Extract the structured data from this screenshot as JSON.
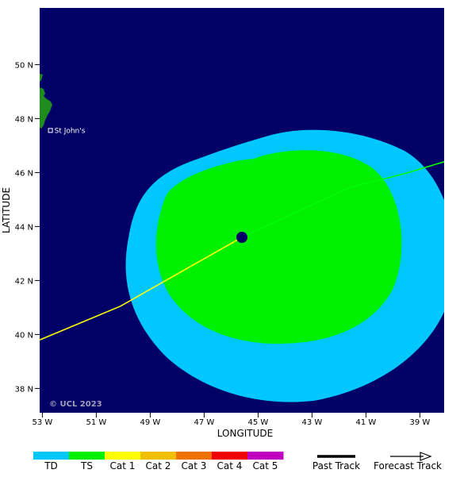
{
  "map": {
    "ocean_color": "#000066",
    "land_color": "#1e8c1e",
    "cone_colors": {
      "outer": "#00c8ff",
      "inner": "#00f000"
    },
    "center_marker_color": "#000066",
    "track_colors": {
      "past": "#ffff00",
      "forecast": "#00ff00"
    },
    "copyright": "© UCL 2023",
    "city": {
      "name": "St John's",
      "lon": -52.7,
      "lat": 47.56
    },
    "storm_center": {
      "lon": -45.6,
      "lat": 43.6
    },
    "bounds": {
      "lon_min": -53.1,
      "lon_max": -38.1,
      "lat_min": 37.1,
      "lat_max": 52.1
    }
  },
  "axes": {
    "xlabel": "LONGITUDE",
    "ylabel": "LATITUDE",
    "x_ticks": [
      {
        "lon": -53,
        "label": "53 W"
      },
      {
        "lon": -51,
        "label": "51 W"
      },
      {
        "lon": -49,
        "label": "49 W"
      },
      {
        "lon": -47,
        "label": "47 W"
      },
      {
        "lon": -45,
        "label": "45 W"
      },
      {
        "lon": -43,
        "label": "43 W"
      },
      {
        "lon": -41,
        "label": "41 W"
      },
      {
        "lon": -39,
        "label": "39 W"
      }
    ],
    "y_ticks": [
      {
        "lat": 50,
        "label": "50 N"
      },
      {
        "lat": 48,
        "label": "48 N"
      },
      {
        "lat": 46,
        "label": "46 N"
      },
      {
        "lat": 44,
        "label": "44 N"
      },
      {
        "lat": 42,
        "label": "42 N"
      },
      {
        "lat": 40,
        "label": "40 N"
      },
      {
        "lat": 38,
        "label": "38 N"
      }
    ]
  },
  "tracks": {
    "past": [
      {
        "lon": -53.1,
        "lat": 39.8
      },
      {
        "lon": -50.1,
        "lat": 41.05
      },
      {
        "lon": -45.6,
        "lat": 43.6
      }
    ],
    "forecast": [
      {
        "lon": -45.6,
        "lat": 43.6
      },
      {
        "lon": -41.6,
        "lat": 45.45
      },
      {
        "lon": -39.6,
        "lat": 45.95
      },
      {
        "lon": -38.1,
        "lat": 46.4
      }
    ]
  },
  "legend": {
    "categories": [
      {
        "label": "TD",
        "color": "#00c8ff"
      },
      {
        "label": "TS",
        "color": "#00f000"
      },
      {
        "label": "Cat 1",
        "color": "#ffff00"
      },
      {
        "label": "Cat 2",
        "color": "#f0c000"
      },
      {
        "label": "Cat 3",
        "color": "#f07000"
      },
      {
        "label": "Cat 4",
        "color": "#f00000"
      },
      {
        "label": "Cat 5",
        "color": "#c000c0"
      }
    ],
    "past_track_label": "Past Track",
    "forecast_track_label": "Forecast Track"
  }
}
